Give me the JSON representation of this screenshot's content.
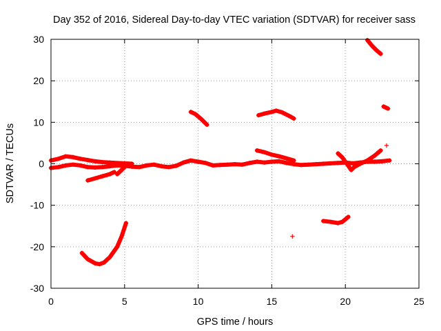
{
  "chart_data": {
    "type": "scatter",
    "title": "Day 352 of 2016, Sidereal Day-to-day VTEC variation (SDTVAR) for receiver sass",
    "xlabel": "GPS time / hours",
    "ylabel": "SDTVAR / TECUs",
    "xlim": [
      0,
      25
    ],
    "ylim": [
      -30,
      30
    ],
    "xticks": [
      0,
      5,
      10,
      15,
      20,
      25
    ],
    "yticks": [
      -30,
      -20,
      -10,
      0,
      10,
      20,
      30
    ],
    "grid": true,
    "marker": "plus",
    "color": "#ff0000",
    "segments": [
      {
        "points": [
          [
            0.0,
            0.8
          ],
          [
            0.5,
            1.2
          ],
          [
            1.0,
            1.8
          ],
          [
            1.5,
            1.6
          ],
          [
            2.0,
            1.2
          ],
          [
            2.5,
            0.9
          ],
          [
            3.0,
            0.6
          ],
          [
            3.5,
            0.4
          ],
          [
            4.0,
            0.3
          ],
          [
            5.0,
            0.1
          ],
          [
            5.5,
            0.0
          ]
        ]
      },
      {
        "points": [
          [
            0.0,
            -1.0
          ],
          [
            0.5,
            -0.8
          ],
          [
            1.0,
            -0.4
          ],
          [
            1.5,
            -0.2
          ],
          [
            2.0,
            -0.4
          ],
          [
            2.5,
            -0.8
          ],
          [
            3.0,
            -0.9
          ],
          [
            3.5,
            -0.8
          ],
          [
            4.0,
            -0.6
          ],
          [
            4.5,
            -0.4
          ],
          [
            5.0,
            -0.5
          ],
          [
            5.5,
            -0.7
          ],
          [
            6.0,
            -0.8
          ],
          [
            6.5,
            -0.4
          ],
          [
            7.0,
            -0.2
          ],
          [
            7.5,
            -0.6
          ],
          [
            8.0,
            -0.8
          ],
          [
            8.5,
            -0.5
          ],
          [
            9.0,
            0.3
          ],
          [
            9.5,
            0.8
          ],
          [
            10.0,
            0.5
          ],
          [
            10.5,
            0.2
          ],
          [
            11.0,
            -0.4
          ],
          [
            11.5,
            -0.3
          ],
          [
            12.0,
            -0.2
          ],
          [
            12.5,
            -0.1
          ],
          [
            13.0,
            -0.2
          ],
          [
            13.5,
            0.2
          ],
          [
            14.0,
            0.5
          ],
          [
            14.5,
            0.3
          ],
          [
            15.0,
            0.5
          ],
          [
            15.5,
            0.6
          ],
          [
            16.0,
            0.2
          ],
          [
            16.5,
            -0.1
          ],
          [
            17.0,
            -0.3
          ],
          [
            17.5,
            -0.2
          ],
          [
            18.0,
            -0.1
          ],
          [
            18.5,
            0.0
          ],
          [
            19.0,
            0.1
          ],
          [
            19.5,
            0.2
          ],
          [
            20.0,
            0.3
          ],
          [
            20.5,
            0.1
          ],
          [
            21.0,
            0.3
          ],
          [
            21.5,
            0.5
          ],
          [
            22.0,
            0.5
          ],
          [
            22.5,
            0.6
          ],
          [
            23.0,
            0.8
          ]
        ]
      },
      {
        "points": [
          [
            2.5,
            -4.0
          ],
          [
            3.0,
            -3.5
          ],
          [
            3.5,
            -3.0
          ],
          [
            4.0,
            -2.5
          ],
          [
            4.3,
            -2.0
          ]
        ]
      },
      {
        "points": [
          [
            4.5,
            -2.5
          ],
          [
            4.8,
            -1.5
          ],
          [
            5.0,
            -0.8
          ]
        ]
      },
      {
        "points": [
          [
            2.1,
            -21.5
          ],
          [
            2.5,
            -23.0
          ],
          [
            3.0,
            -24.0
          ],
          [
            3.3,
            -24.2
          ],
          [
            3.6,
            -23.8
          ],
          [
            4.0,
            -22.5
          ],
          [
            4.5,
            -20.0
          ],
          [
            4.8,
            -17.5
          ],
          [
            5.1,
            -14.3
          ]
        ]
      },
      {
        "points": [
          [
            9.5,
            12.5
          ],
          [
            9.8,
            12.0
          ],
          [
            10.2,
            10.8
          ],
          [
            10.6,
            9.4
          ]
        ]
      },
      {
        "points": [
          [
            14.1,
            11.7
          ],
          [
            14.5,
            12.1
          ],
          [
            15.0,
            12.5
          ],
          [
            15.3,
            12.8
          ],
          [
            15.7,
            12.4
          ],
          [
            16.2,
            11.5
          ],
          [
            16.5,
            10.9
          ]
        ]
      },
      {
        "points": [
          [
            14.0,
            3.2
          ],
          [
            14.5,
            2.8
          ],
          [
            15.0,
            2.2
          ],
          [
            15.5,
            1.8
          ],
          [
            16.0,
            1.3
          ],
          [
            16.5,
            0.8
          ]
        ]
      },
      {
        "points": [
          [
            16.4,
            -17.5
          ]
        ]
      },
      {
        "points": [
          [
            18.5,
            -13.8
          ],
          [
            19.0,
            -14.0
          ],
          [
            19.5,
            -14.3
          ],
          [
            19.8,
            -14.0
          ],
          [
            20.2,
            -12.8
          ]
        ]
      },
      {
        "points": [
          [
            19.5,
            2.5
          ],
          [
            19.8,
            1.5
          ],
          [
            20.0,
            0.5
          ],
          [
            20.2,
            -0.5
          ],
          [
            20.4,
            -1.5
          ],
          [
            20.6,
            -0.8
          ],
          [
            21.0,
            0.0
          ],
          [
            21.5,
            0.8
          ],
          [
            22.0,
            2.0
          ],
          [
            22.4,
            3.2
          ]
        ]
      },
      {
        "points": [
          [
            21.5,
            29.8
          ],
          [
            21.8,
            28.5
          ],
          [
            22.1,
            27.4
          ],
          [
            22.4,
            26.5
          ]
        ]
      },
      {
        "points": [
          [
            22.6,
            13.8
          ],
          [
            22.9,
            13.3
          ]
        ]
      },
      {
        "points": [
          [
            22.8,
            4.4
          ]
        ]
      }
    ]
  }
}
